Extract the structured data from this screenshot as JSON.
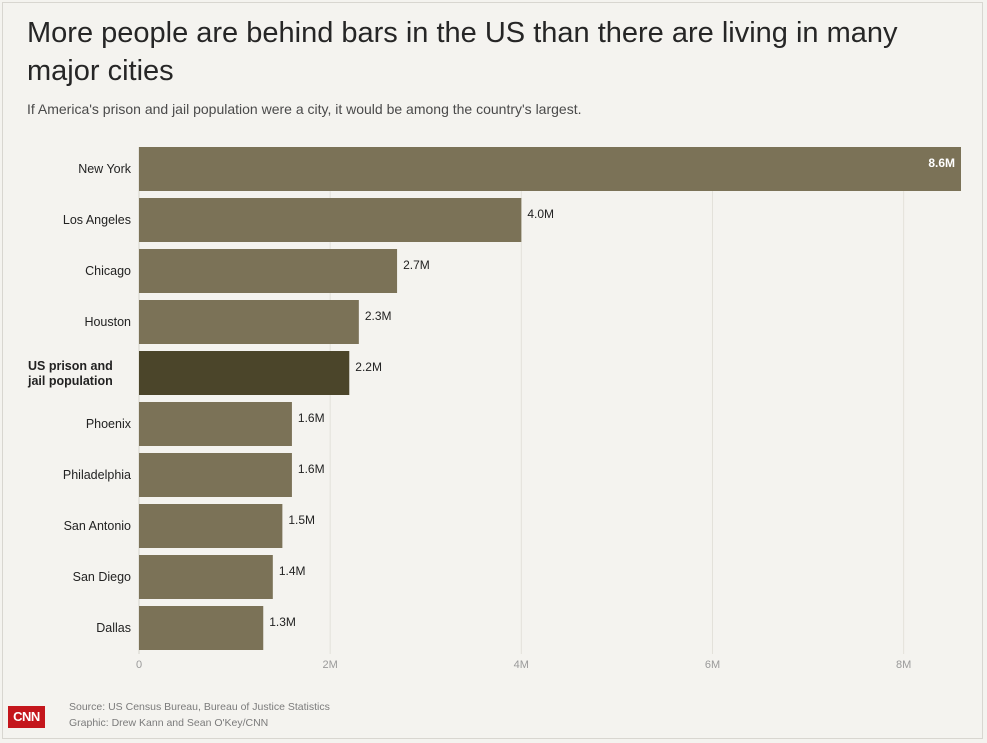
{
  "header": {
    "title": "More people are behind bars in the US than there are living in many major cities",
    "subtitle": "If America's prison and jail population were a city, it would be among the country's largest."
  },
  "footer": {
    "source": "Source: US Census Bureau, Bureau of Justice Statistics",
    "graphic": "Graphic: Drew Kann and Sean O'Key/CNN",
    "logo": "CNN"
  },
  "colors": {
    "bar": "#7b7257",
    "highlight": "#4b452a",
    "background": "#f4f3ef",
    "grid": "#e3e1da"
  },
  "chart_data": {
    "type": "bar",
    "orientation": "horizontal",
    "categories": [
      "New York",
      "Los Angeles",
      "Chicago",
      "Houston",
      "US prison and jail population",
      "Phoenix",
      "Philadelphia",
      "San Antonio",
      "San Diego",
      "Dallas"
    ],
    "values": [
      8.6,
      4.0,
      2.7,
      2.3,
      2.2,
      1.6,
      1.6,
      1.5,
      1.4,
      1.3
    ],
    "value_labels": [
      "8.6M",
      "4.0M",
      "2.7M",
      "2.3M",
      "2.2M",
      "1.6M",
      "1.6M",
      "1.5M",
      "1.4M",
      "1.3M"
    ],
    "highlight_category": "US prison and jail population",
    "xticks": [
      0,
      2,
      4,
      6,
      8
    ],
    "xtick_labels": [
      "0",
      "2M",
      "4M",
      "6M",
      "8M"
    ],
    "xlim": [
      0,
      8.6
    ],
    "grid": true
  }
}
